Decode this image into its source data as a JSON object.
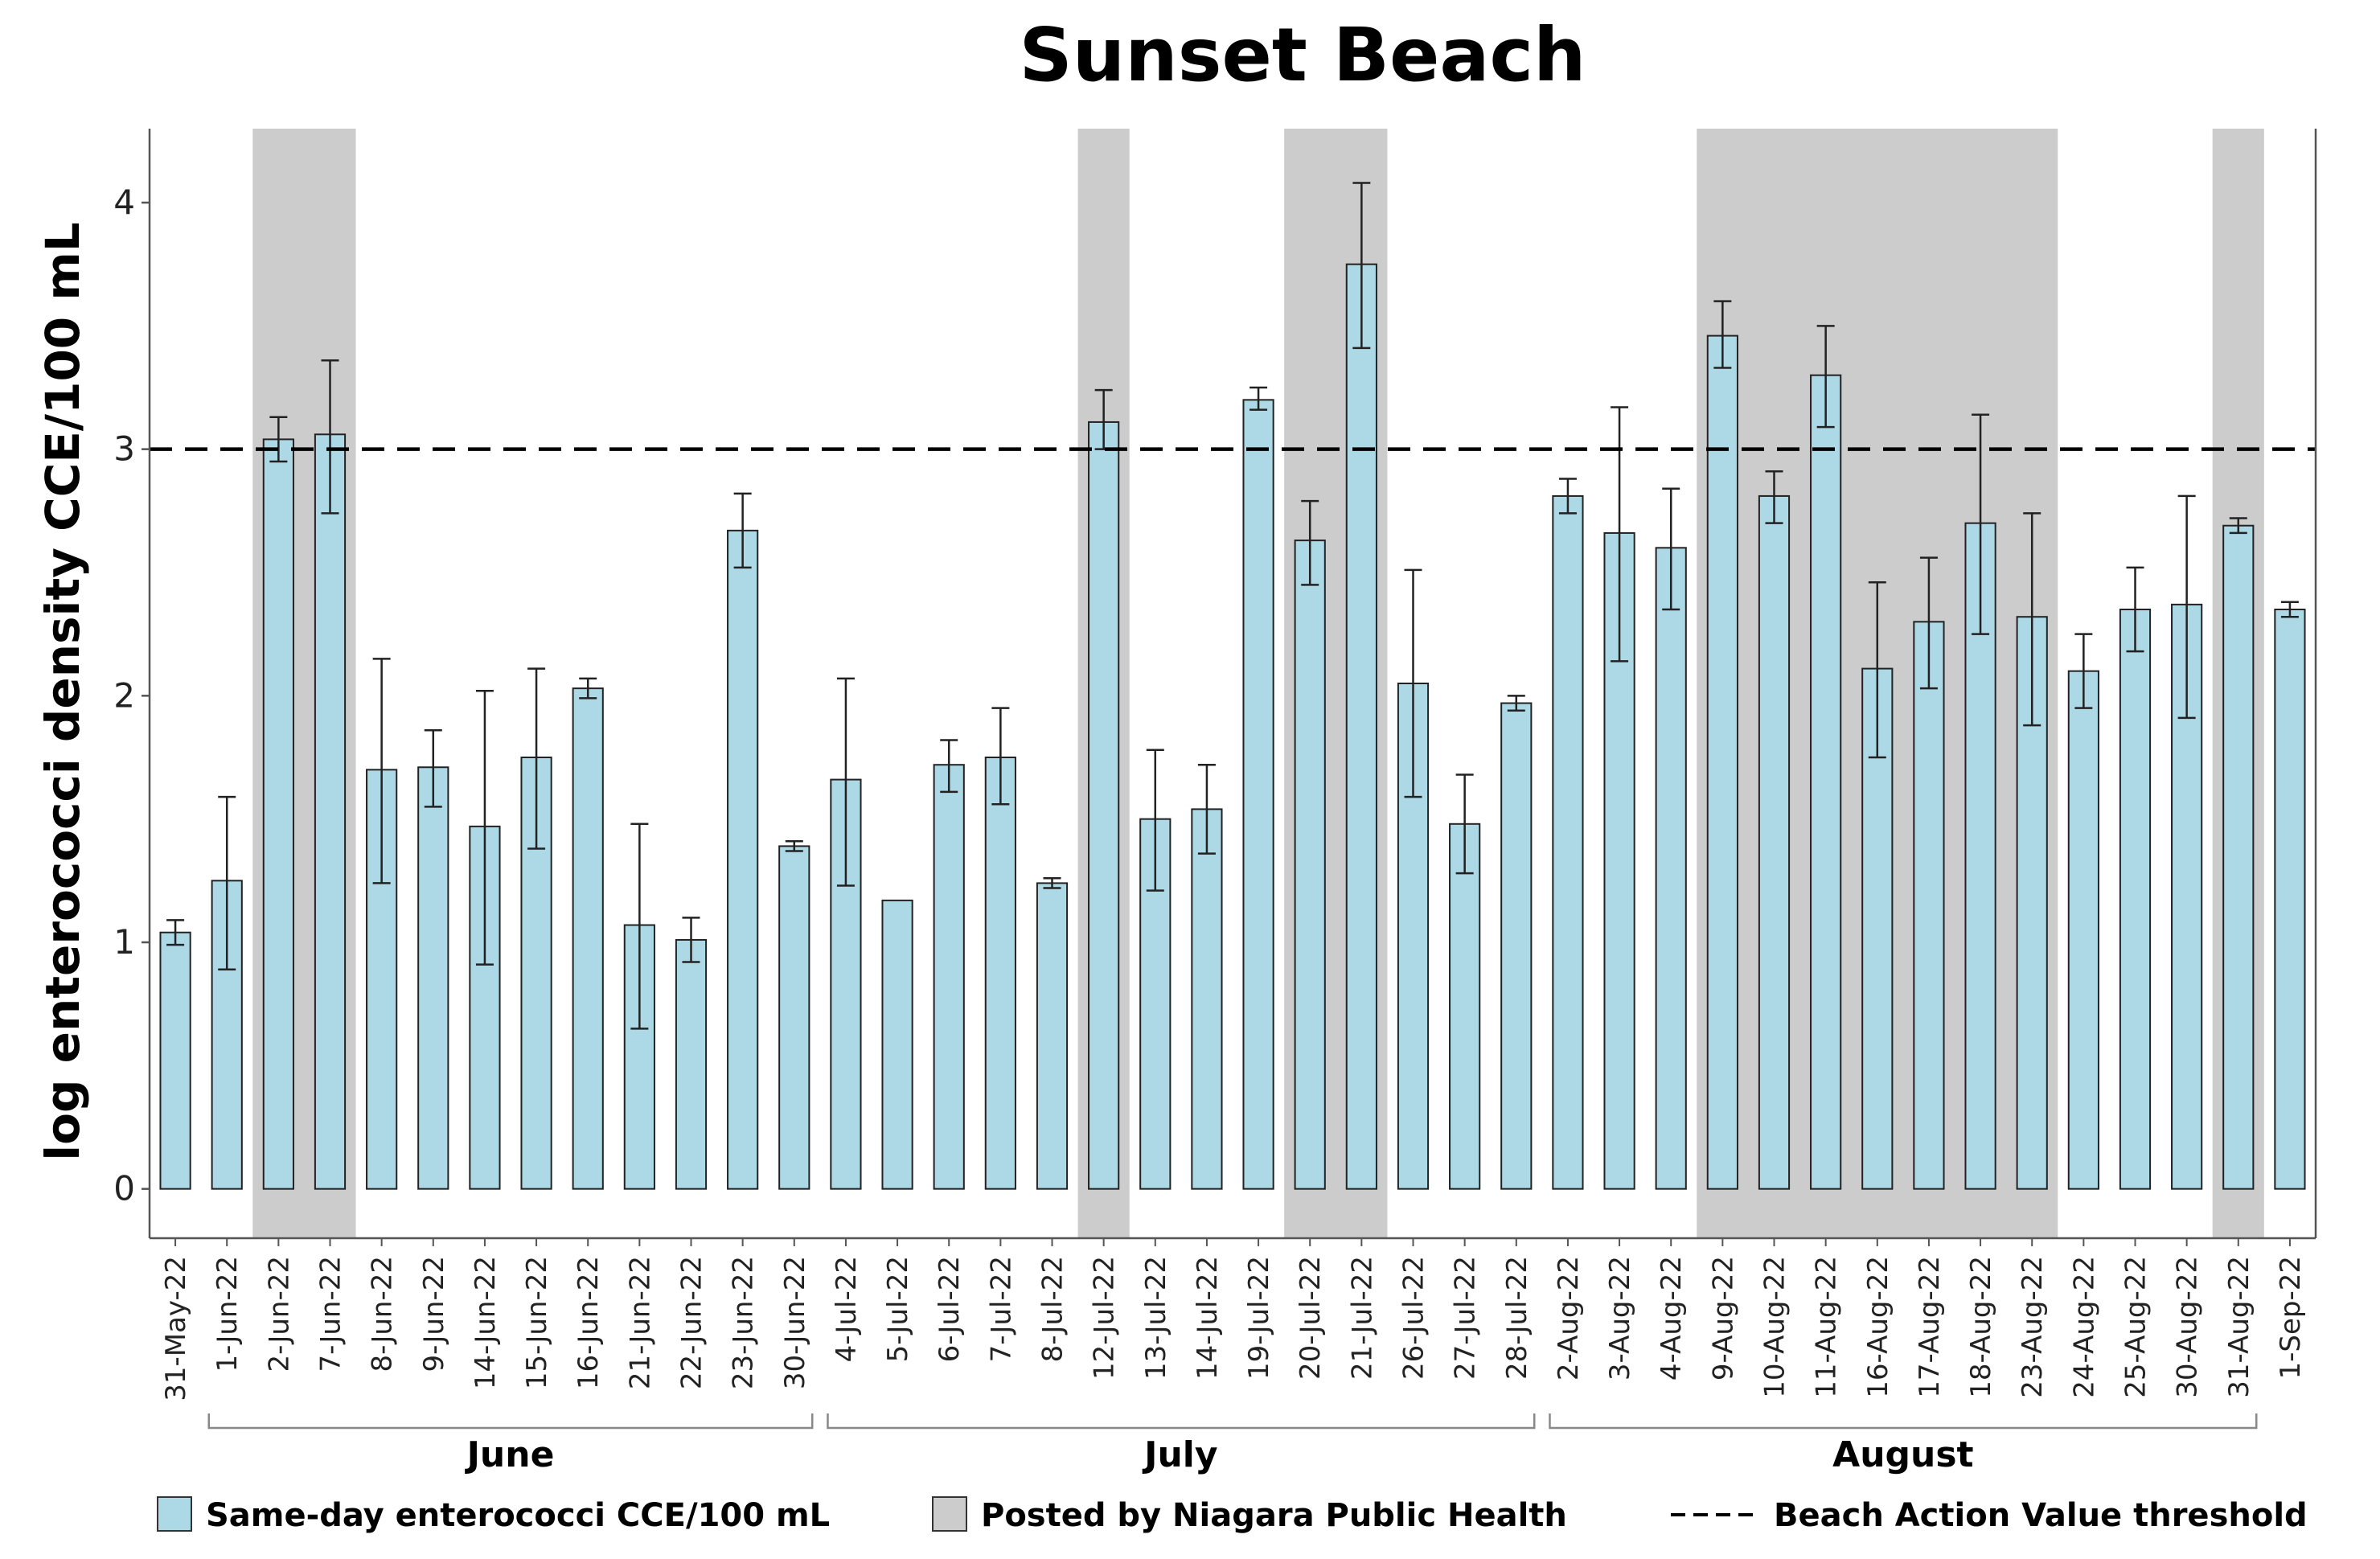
{
  "chart_data": {
    "type": "bar",
    "title": "Sunset Beach",
    "ylabel": "log enterococci density CCE/100 mL",
    "xlabel": "",
    "ylim": [
      -0.2,
      4.3
    ],
    "yticks": [
      0,
      1,
      2,
      3,
      4
    ],
    "threshold": 3,
    "categories": [
      "31-May-22",
      "1-Jun-22",
      "2-Jun-22",
      "7-Jun-22",
      "8-Jun-22",
      "9-Jun-22",
      "14-Jun-22",
      "15-Jun-22",
      "16-Jun-22",
      "21-Jun-22",
      "22-Jun-22",
      "23-Jun-22",
      "30-Jun-22",
      "4-Jul-22",
      "5-Jul-22",
      "6-Jul-22",
      "7-Jul-22",
      "8-Jul-22",
      "12-Jul-22",
      "13-Jul-22",
      "14-Jul-22",
      "19-Jul-22",
      "20-Jul-22",
      "21-Jul-22",
      "26-Jul-22",
      "27-Jul-22",
      "28-Jul-22",
      "2-Aug-22",
      "3-Aug-22",
      "4-Aug-22",
      "9-Aug-22",
      "10-Aug-22",
      "11-Aug-22",
      "16-Aug-22",
      "17-Aug-22",
      "18-Aug-22",
      "23-Aug-22",
      "24-Aug-22",
      "25-Aug-22",
      "30-Aug-22",
      "31-Aug-22",
      "1-Sep-22"
    ],
    "values": [
      1.04,
      1.25,
      3.04,
      3.06,
      1.7,
      1.71,
      1.47,
      1.75,
      2.03,
      1.07,
      1.01,
      2.67,
      1.39,
      1.66,
      1.17,
      1.72,
      1.75,
      1.24,
      3.11,
      1.5,
      1.54,
      3.2,
      2.63,
      3.75,
      2.05,
      1.48,
      1.97,
      2.81,
      2.66,
      2.6,
      3.46,
      2.81,
      3.3,
      2.11,
      2.3,
      2.7,
      2.32,
      2.1,
      2.35,
      2.37,
      2.69,
      2.35
    ],
    "error_low": [
      0.99,
      0.89,
      2.95,
      2.74,
      1.24,
      1.55,
      0.91,
      1.38,
      1.99,
      0.65,
      0.92,
      2.52,
      1.37,
      1.23,
      1.17,
      1.61,
      1.56,
      1.22,
      3.0,
      1.21,
      1.36,
      3.16,
      2.45,
      3.41,
      1.59,
      1.28,
      1.94,
      2.74,
      2.14,
      2.35,
      3.33,
      2.7,
      3.09,
      1.75,
      2.03,
      2.25,
      1.88,
      1.95,
      2.18,
      1.91,
      2.66,
      2.32
    ],
    "error_high": [
      1.09,
      1.59,
      3.13,
      3.36,
      2.15,
      1.86,
      2.02,
      2.11,
      2.07,
      1.48,
      1.1,
      2.82,
      1.41,
      2.07,
      1.17,
      1.82,
      1.95,
      1.26,
      3.24,
      1.78,
      1.72,
      3.25,
      2.79,
      4.08,
      2.51,
      1.68,
      2.0,
      2.88,
      3.17,
      2.84,
      3.6,
      2.91,
      3.5,
      2.46,
      2.56,
      3.14,
      2.74,
      2.25,
      2.52,
      2.81,
      2.72,
      2.38
    ],
    "posted_ranges": [
      {
        "start": "2-Jun-22",
        "end": "7-Jun-22"
      },
      {
        "start": "12-Jul-22",
        "end": "12-Jul-22"
      },
      {
        "start": "20-Jul-22",
        "end": "21-Jul-22"
      },
      {
        "start": "9-Aug-22",
        "end": "23-Aug-22"
      },
      {
        "start": "31-Aug-22",
        "end": "31-Aug-22"
      }
    ],
    "month_groups": [
      {
        "label": "June",
        "start": "1-Jun-22",
        "end": "30-Jun-22"
      },
      {
        "label": "July",
        "start": "4-Jul-22",
        "end": "28-Jul-22"
      },
      {
        "label": "August",
        "start": "2-Aug-22",
        "end": "31-Aug-22"
      }
    ],
    "legend": {
      "bars": "Same-day enterococci CCE/100 mL",
      "posted": "Posted by Niagara Public Health",
      "threshold": "Beach Action Value threshold"
    },
    "colors": {
      "bar": "#add8e6",
      "posted": "#cccccc",
      "axis": "#555555"
    }
  }
}
